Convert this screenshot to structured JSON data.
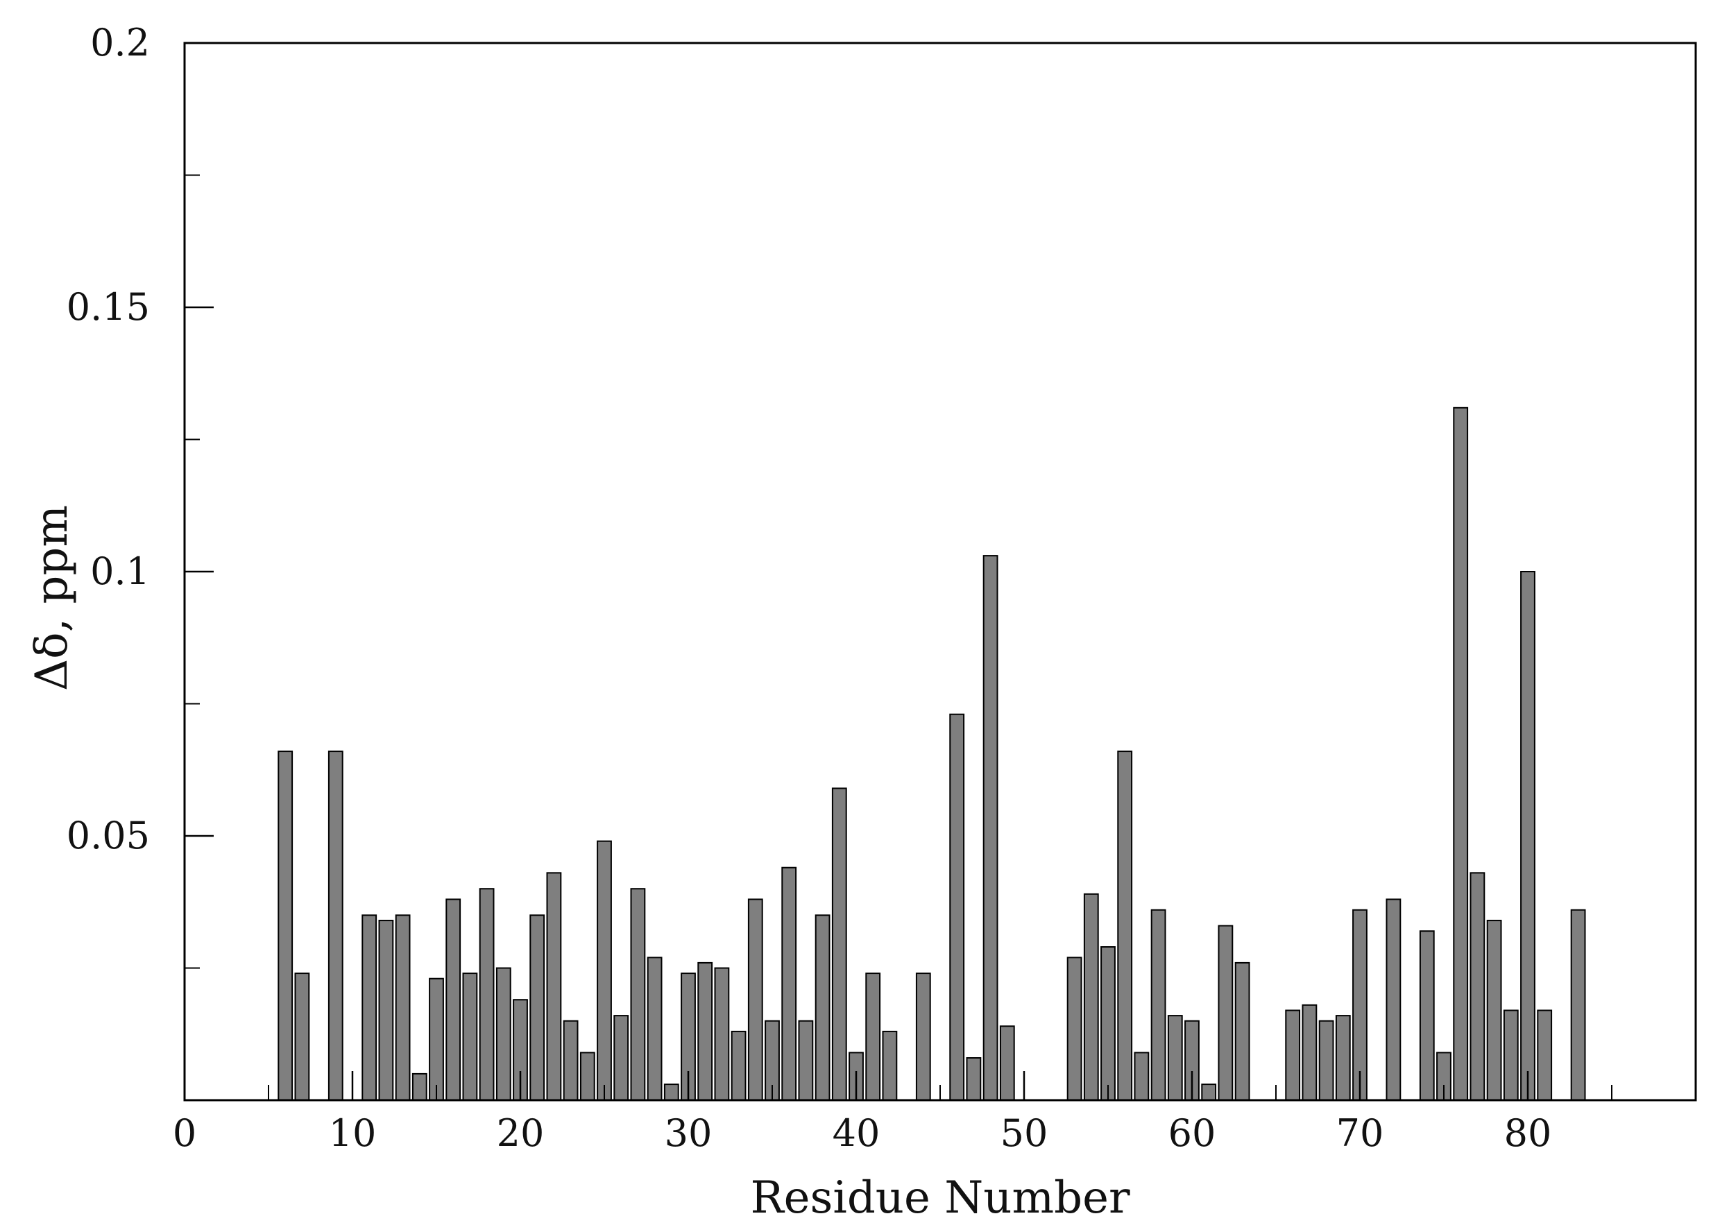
{
  "chart_data": {
    "type": "bar",
    "xlabel": "Residue Number",
    "ylabel": "Δδ, ppm",
    "xlim": [
      0,
      90
    ],
    "ylim": [
      0,
      0.2
    ],
    "x_ticks": [
      "0",
      "10",
      "20",
      "30",
      "40",
      "50",
      "60",
      "70",
      "80"
    ],
    "y_ticks": [
      "0.05",
      "0.1",
      "0.15",
      "0.2"
    ],
    "grid": false,
    "bar_color": "#7f7f7f",
    "x": [
      6,
      7,
      9,
      11,
      12,
      13,
      14,
      15,
      16,
      17,
      18,
      19,
      20,
      21,
      22,
      23,
      24,
      25,
      26,
      27,
      28,
      29,
      30,
      31,
      32,
      33,
      34,
      35,
      36,
      37,
      38,
      39,
      40,
      41,
      42,
      44,
      46,
      47,
      48,
      49,
      53,
      54,
      55,
      56,
      57,
      58,
      59,
      60,
      61,
      62,
      63,
      66,
      67,
      68,
      69,
      70,
      72,
      74,
      75,
      76,
      77,
      78,
      79,
      80,
      81,
      83
    ],
    "values": [
      0.066,
      0.024,
      0.066,
      0.035,
      0.034,
      0.035,
      0.005,
      0.023,
      0.038,
      0.024,
      0.04,
      0.025,
      0.019,
      0.035,
      0.043,
      0.015,
      0.009,
      0.049,
      0.016,
      0.04,
      0.027,
      0.003,
      0.024,
      0.026,
      0.025,
      0.013,
      0.038,
      0.015,
      0.044,
      0.015,
      0.035,
      0.059,
      0.009,
      0.024,
      0.013,
      0.024,
      0.073,
      0.008,
      0.103,
      0.014,
      0.027,
      0.039,
      0.029,
      0.066,
      0.009,
      0.036,
      0.016,
      0.015,
      0.003,
      0.033,
      0.026,
      0.017,
      0.018,
      0.015,
      0.016,
      0.036,
      0.038,
      0.032,
      0.009,
      0.131,
      0.043,
      0.034,
      0.017,
      0.1,
      0.017,
      0.036
    ]
  }
}
